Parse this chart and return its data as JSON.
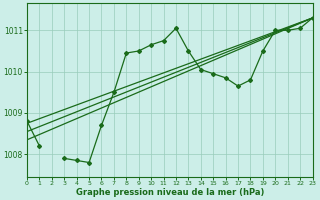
{
  "x_hours": [
    0,
    1,
    2,
    3,
    4,
    5,
    6,
    7,
    8,
    9,
    10,
    11,
    12,
    13,
    14,
    15,
    16,
    17,
    18,
    19,
    20,
    21,
    22,
    23
  ],
  "line_main": [
    1008.8,
    1008.2,
    null,
    1007.9,
    1007.85,
    1007.8,
    1008.7,
    1009.5,
    1010.45,
    1010.5,
    1010.65,
    1010.75,
    1011.05,
    1010.5,
    1010.05,
    1009.95,
    1009.85,
    1009.65,
    1009.8,
    1010.5,
    1011.0,
    1011.0,
    1011.05,
    1011.3
  ],
  "diag_lines": [
    {
      "x0": 0,
      "y0": 1008.75,
      "x1": 23,
      "y1": 1011.3
    },
    {
      "x0": 0,
      "y0": 1008.55,
      "x1": 23,
      "y1": 1011.3
    },
    {
      "x0": 0,
      "y0": 1008.35,
      "x1": 23,
      "y1": 1011.3
    }
  ],
  "bg_color": "#cceee8",
  "line_color": "#1a6b1a",
  "grid_color": "#99ccbb",
  "xlabel": "Graphe pression niveau de la mer (hPa)",
  "ylabel_ticks": [
    1008,
    1009,
    1010,
    1011
  ],
  "ylim": [
    1007.45,
    1011.65
  ],
  "xlim": [
    0,
    23
  ]
}
